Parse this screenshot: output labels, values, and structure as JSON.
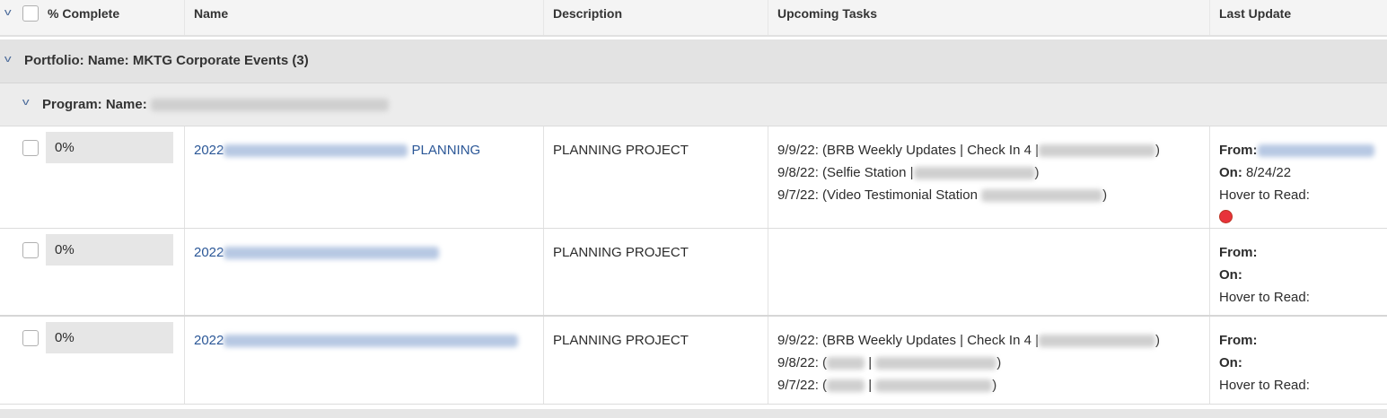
{
  "header": {
    "columns": [
      "% Complete",
      "Name",
      "Description",
      "Upcoming Tasks",
      "Last Update"
    ]
  },
  "groups": {
    "portfolio": "Portfolio: Name: MKTG Corporate Events (3)",
    "program": "Program: Name:"
  },
  "rows": [
    {
      "pct": "0%",
      "name_prefix": "2022",
      "name_suffix": " PLANNING",
      "description": "PLANNING PROJECT",
      "tasks": [
        {
          "date": "9/9/22: (BRB Weekly Updates | Check In 4 |",
          "end": ")"
        },
        {
          "date": "9/8/22: (Selfie Station |",
          "end": ")"
        },
        {
          "date": "9/7/22: (Video Testimonial Station",
          "end": ")"
        }
      ],
      "from": "From:",
      "on": "On:",
      "on_value": " 8/24/22",
      "hover": "Hover to Read:",
      "status_color": "#e8323a"
    },
    {
      "pct": "0%",
      "name_prefix": "2022",
      "name_suffix": "",
      "description": "PLANNING PROJECT",
      "tasks": [],
      "from": "From:",
      "on": "On:",
      "on_value": "",
      "hover": "Hover to Read:"
    },
    {
      "pct": "0%",
      "name_prefix": "2022",
      "name_suffix": "",
      "description": "PLANNING PROJECT",
      "tasks": [
        {
          "date": "9/9/22: (BRB Weekly Updates | Check In 4 |",
          "end": ")"
        },
        {
          "date": "9/8/22: (",
          "end": ")"
        },
        {
          "date": "9/7/22: (",
          "end": ")"
        }
      ],
      "from": "From:",
      "on": "On:",
      "on_value": "",
      "hover": "Hover to Read:"
    }
  ]
}
